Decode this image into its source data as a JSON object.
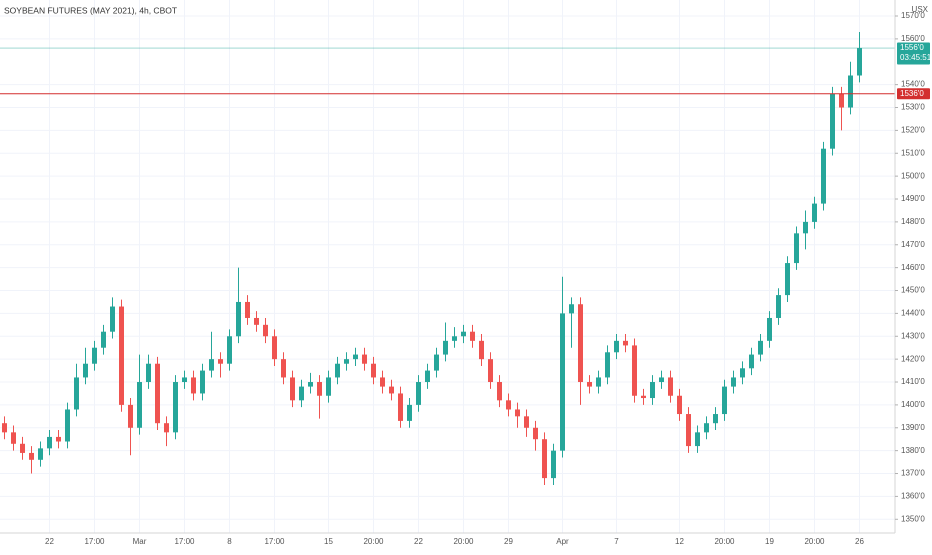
{
  "chart_data": {
    "type": "candlestick",
    "title": "SOYBEAN FUTURES (MAY 2021), 4h, CBOT",
    "currency": "USX",
    "countdown": "03:45:51",
    "up_color": "#26a69a",
    "down_color": "#ef5350",
    "grid": true,
    "categories": [
      null,
      null,
      null,
      null,
      null,
      "22",
      null,
      null,
      null,
      null,
      "17:00",
      null,
      null,
      null,
      null,
      "Mar",
      null,
      null,
      null,
      null,
      "17:00",
      null,
      null,
      null,
      null,
      "8",
      null,
      null,
      null,
      null,
      "17:00",
      null,
      null,
      null,
      null,
      null,
      "15",
      null,
      null,
      null,
      null,
      "20:00",
      null,
      null,
      null,
      null,
      "22",
      null,
      null,
      null,
      null,
      "20:00",
      null,
      null,
      null,
      null,
      "29",
      null,
      null,
      null,
      null,
      null,
      "Apr",
      null,
      null,
      null,
      null,
      null,
      "7",
      null,
      null,
      null,
      null,
      null,
      null,
      "12",
      null,
      null,
      null,
      null,
      "20:00",
      null,
      null,
      null,
      null,
      "19",
      null,
      null,
      null,
      null,
      "20:00",
      null,
      null,
      null,
      null,
      "26"
    ],
    "open": [
      1392,
      1388,
      1383,
      1379,
      1376,
      1381,
      1386,
      1384,
      1398,
      1412,
      1418,
      1425,
      1432,
      1443,
      1400,
      1390,
      1410,
      1418,
      1392,
      1388,
      1410,
      1412,
      1405,
      1415,
      1420,
      1418,
      1430,
      1445,
      1438,
      1435,
      1430,
      1420,
      1412,
      1402,
      1408,
      1410,
      1404,
      1412,
      1418,
      1420,
      1422,
      1418,
      1412,
      1408,
      1405,
      1393,
      1400,
      1410,
      1415,
      1422,
      1428,
      1430,
      1432,
      1428,
      1420,
      1410,
      1402,
      1398,
      1395,
      1390,
      1385,
      1368,
      1380,
      1440,
      1444,
      1410,
      1408,
      1412,
      1423,
      1428,
      1426,
      1404,
      1403,
      1410,
      1412,
      1404,
      1396,
      1382,
      1388,
      1392,
      1396,
      1408,
      1412,
      1416,
      1422,
      1428,
      1438,
      1448,
      1462,
      1475,
      1480,
      1488,
      1512,
      1536,
      1530,
      1544
    ],
    "high": [
      1395,
      1391,
      1386,
      1382,
      1384,
      1389,
      1389,
      1401,
      1418,
      1425,
      1428,
      1435,
      1447,
      1446,
      1403,
      1422,
      1422,
      1421,
      1395,
      1413,
      1415,
      1415,
      1418,
      1432,
      1423,
      1433,
      1460,
      1448,
      1441,
      1438,
      1433,
      1423,
      1415,
      1411,
      1414,
      1413,
      1415,
      1421,
      1423,
      1425,
      1425,
      1421,
      1415,
      1411,
      1408,
      1403,
      1413,
      1418,
      1425,
      1436,
      1434,
      1435,
      1435,
      1431,
      1423,
      1413,
      1405,
      1401,
      1398,
      1393,
      1388,
      1383,
      1456,
      1447,
      1447,
      1413,
      1415,
      1426,
      1431,
      1431,
      1429,
      1407,
      1413,
      1415,
      1415,
      1407,
      1399,
      1391,
      1395,
      1399,
      1411,
      1415,
      1419,
      1425,
      1431,
      1441,
      1451,
      1465,
      1478,
      1485,
      1491,
      1515,
      1539,
      1539,
      1550,
      1563
    ],
    "low": [
      1385,
      1380,
      1376,
      1370,
      1373,
      1378,
      1381,
      1381,
      1395,
      1409,
      1415,
      1422,
      1429,
      1397,
      1378,
      1387,
      1407,
      1389,
      1382,
      1385,
      1407,
      1402,
      1402,
      1412,
      1412,
      1415,
      1427,
      1435,
      1432,
      1427,
      1417,
      1409,
      1399,
      1399,
      1405,
      1394,
      1401,
      1409,
      1415,
      1417,
      1415,
      1409,
      1405,
      1402,
      1390,
      1390,
      1397,
      1407,
      1412,
      1419,
      1425,
      1427,
      1425,
      1417,
      1407,
      1399,
      1395,
      1390,
      1386,
      1380,
      1365,
      1365,
      1377,
      1425,
      1400,
      1405,
      1405,
      1409,
      1420,
      1423,
      1401,
      1400,
      1400,
      1407,
      1401,
      1393,
      1379,
      1379,
      1385,
      1389,
      1393,
      1405,
      1409,
      1413,
      1419,
      1425,
      1435,
      1445,
      1459,
      1468,
      1477,
      1485,
      1509,
      1520,
      1527,
      1541
    ],
    "close": [
      1388,
      1383,
      1379,
      1376,
      1381,
      1386,
      1384,
      1398,
      1412,
      1418,
      1425,
      1432,
      1443,
      1400,
      1390,
      1410,
      1418,
      1392,
      1388,
      1410,
      1412,
      1405,
      1415,
      1420,
      1418,
      1430,
      1445,
      1438,
      1435,
      1430,
      1420,
      1412,
      1402,
      1408,
      1410,
      1404,
      1412,
      1418,
      1420,
      1422,
      1418,
      1412,
      1408,
      1405,
      1393,
      1400,
      1410,
      1415,
      1422,
      1428,
      1430,
      1432,
      1428,
      1420,
      1410,
      1402,
      1398,
      1395,
      1390,
      1385,
      1368,
      1380,
      1440,
      1444,
      1410,
      1408,
      1412,
      1423,
      1428,
      1426,
      1404,
      1403,
      1410,
      1412,
      1404,
      1396,
      1382,
      1388,
      1392,
      1396,
      1408,
      1412,
      1416,
      1422,
      1428,
      1438,
      1448,
      1462,
      1475,
      1480,
      1488,
      1512,
      1536,
      1530,
      1544,
      1556
    ],
    "ylim": [
      1344,
      1577
    ],
    "yticks": [
      {
        "value": 1350,
        "label": "1350'0"
      },
      {
        "value": 1360,
        "label": "1360'0"
      },
      {
        "value": 1370,
        "label": "1370'0"
      },
      {
        "value": 1380,
        "label": "1380'0"
      },
      {
        "value": 1390,
        "label": "1390'0"
      },
      {
        "value": 1400,
        "label": "1400'0"
      },
      {
        "value": 1410,
        "label": "1410'0"
      },
      {
        "value": 1420,
        "label": "1420'0"
      },
      {
        "value": 1430,
        "label": "1430'0"
      },
      {
        "value": 1440,
        "label": "1440'0"
      },
      {
        "value": 1450,
        "label": "1450'0"
      },
      {
        "value": 1460,
        "label": "1460'0"
      },
      {
        "value": 1470,
        "label": "1470'0"
      },
      {
        "value": 1480,
        "label": "1480'0"
      },
      {
        "value": 1490,
        "label": "1490'0"
      },
      {
        "value": 1500,
        "label": "1500'0"
      },
      {
        "value": 1510,
        "label": "1510'0"
      },
      {
        "value": 1520,
        "label": "1520'0"
      },
      {
        "value": 1530,
        "label": "1530'0"
      },
      {
        "value": 1540,
        "label": "1540'0"
      },
      {
        "value": 1560,
        "label": "1560'0"
      },
      {
        "value": 1570,
        "label": "1570'0"
      }
    ],
    "price_lines": [
      {
        "value": 1556,
        "label": "1556'0",
        "color": "#26a69a"
      },
      {
        "value": 1536,
        "label": "1536'0",
        "color": "#d32f2f"
      }
    ]
  }
}
